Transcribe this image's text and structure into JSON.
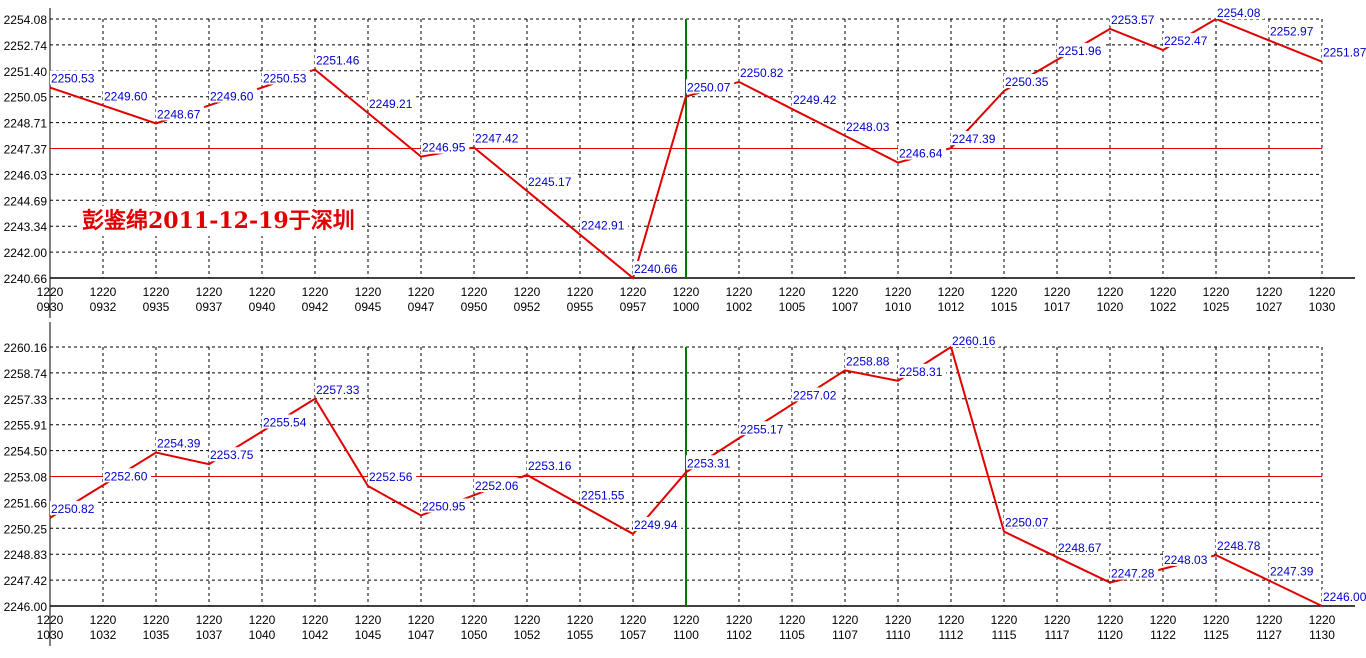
{
  "colors": {
    "line": "#e00000",
    "label": "#0000cc",
    "grid": "#000000",
    "ref": "#e00000",
    "divider": "#007700"
  },
  "watermark": "彭鉴绵2011-12-19于深圳",
  "chart_data": [
    {
      "type": "line",
      "date_label": "1220",
      "x": [
        "0930",
        "0932",
        "0935",
        "0937",
        "0940",
        "0942",
        "0945",
        "0947",
        "0950",
        "0952",
        "0955",
        "0957",
        "1000",
        "1002",
        "1005",
        "1007",
        "1010",
        "1012",
        "1015",
        "1017",
        "1020",
        "1022",
        "1025",
        "1027",
        "1030"
      ],
      "values": [
        2250.53,
        2249.6,
        2248.67,
        2249.6,
        2250.53,
        2251.46,
        2249.21,
        2246.95,
        2247.42,
        2245.17,
        2242.91,
        2240.66,
        2250.07,
        2250.82,
        2249.42,
        2248.03,
        2246.64,
        2247.39,
        2250.35,
        2251.96,
        2253.57,
        2252.47,
        2254.08,
        2252.97,
        2251.87
      ],
      "yticks": [
        "2254.08",
        "2252.74",
        "2251.40",
        "2250.05",
        "2248.71",
        "2247.37",
        "2246.03",
        "2244.69",
        "2243.34",
        "2242.00",
        "2240.66"
      ],
      "ylim": [
        2240.66,
        2254.08
      ],
      "reference_line": 2247.37,
      "divider_at": "1000",
      "grid": true
    },
    {
      "type": "line",
      "date_label": "1220",
      "x": [
        "1030",
        "1032",
        "1035",
        "1037",
        "1040",
        "1042",
        "1045",
        "1047",
        "1050",
        "1052",
        "1055",
        "1057",
        "1100",
        "1102",
        "1105",
        "1107",
        "1110",
        "1112",
        "1115",
        "1117",
        "1120",
        "1122",
        "1125",
        "1127",
        "1130"
      ],
      "values": [
        2250.82,
        2252.6,
        2254.39,
        2253.75,
        2255.54,
        2257.33,
        2252.56,
        2250.95,
        2252.06,
        2253.16,
        2251.55,
        2249.94,
        2253.31,
        2255.17,
        2257.02,
        2258.88,
        2258.31,
        2260.16,
        2250.07,
        2248.67,
        2247.28,
        2248.03,
        2248.78,
        2247.39,
        2246.0
      ],
      "yticks": [
        "2260.16",
        "2258.74",
        "2257.33",
        "2255.91",
        "2254.50",
        "2253.08",
        "2251.66",
        "2250.25",
        "2248.83",
        "2247.42",
        "2246.00"
      ],
      "ylim": [
        2246.0,
        2260.16
      ],
      "reference_line": 2253.08,
      "divider_at": "1100",
      "grid": true
    }
  ]
}
